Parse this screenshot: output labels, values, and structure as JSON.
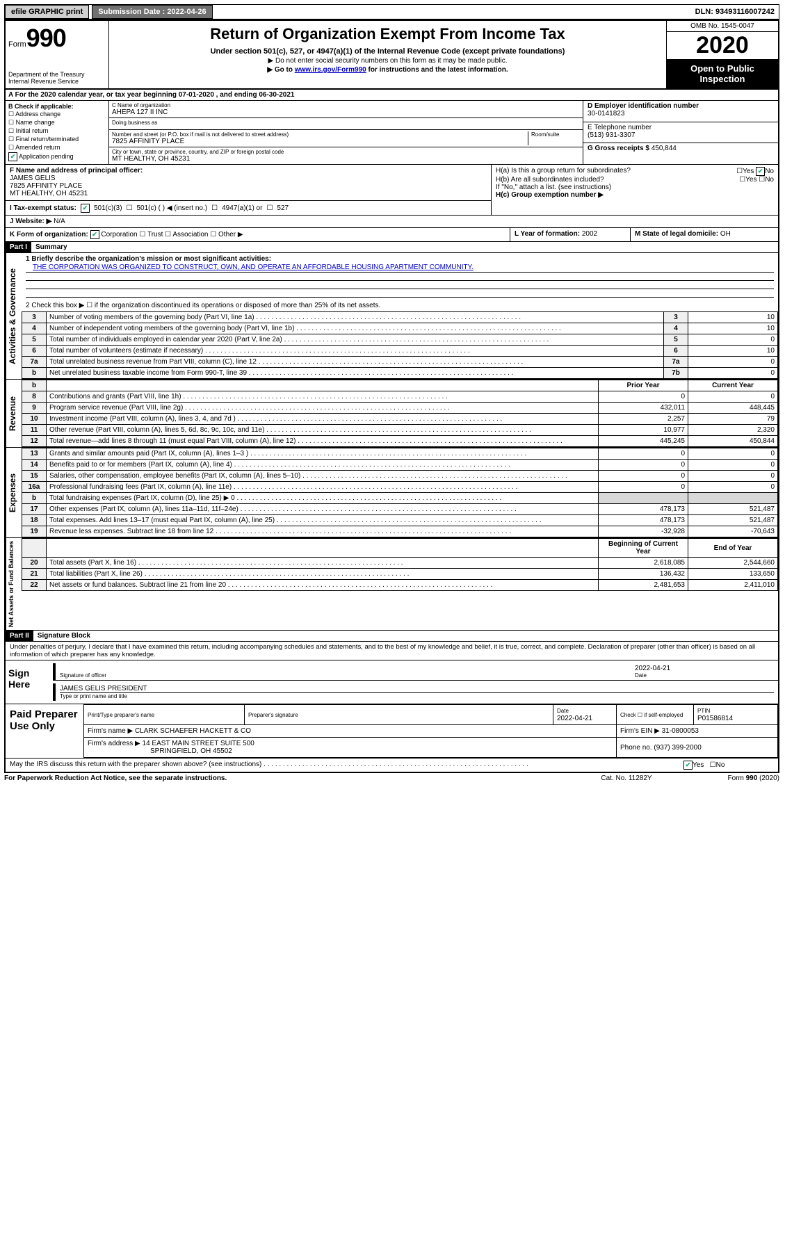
{
  "topbar": {
    "efile": "efile GRAPHIC print",
    "submission_label": "Submission Date : 2022-04-26",
    "dln": "DLN: 93493116007242"
  },
  "header": {
    "form_word": "Form",
    "form_num": "990",
    "dept": "Department of the Treasury\nInternal Revenue Service",
    "title": "Return of Organization Exempt From Income Tax",
    "subtitle": "Under section 501(c), 527, or 4947(a)(1) of the Internal Revenue Code (except private foundations)",
    "arrow1": "▶ Do not enter social security numbers on this form as it may be made public.",
    "arrow2_pre": "▶ Go to ",
    "arrow2_link": "www.irs.gov/Form990",
    "arrow2_post": " for instructions and the latest information.",
    "omb": "OMB No. 1545-0047",
    "year": "2020",
    "open": "Open to Public Inspection"
  },
  "A": {
    "text": "For the 2020 calendar year, or tax year beginning 07-01-2020    , and ending 06-30-2021"
  },
  "B": {
    "label": "B Check if applicable:",
    "opts": [
      "Address change",
      "Name change",
      "Initial return",
      "Final return/terminated",
      "Amended return",
      "Application pending"
    ],
    "pending_ck": "✔"
  },
  "C": {
    "name_lbl": "C Name of organization",
    "name": "AHEPA 127 II INC",
    "dba_lbl": "Doing business as",
    "addr_lbl": "Number and street (or P.O. box if mail is not delivered to street address)",
    "room_lbl": "Room/suite",
    "addr": "7825 AFFINITY PLACE",
    "city_lbl": "City or town, state or province, country, and ZIP or foreign postal code",
    "city": "MT HEALTHY, OH  45231"
  },
  "D": {
    "lbl": "D Employer identification number",
    "val": "30-0141823"
  },
  "E": {
    "lbl": "E Telephone number",
    "val": "(513) 931-3307"
  },
  "G": {
    "lbl": "G Gross receipts $",
    "val": "450,844"
  },
  "F": {
    "lbl": "F  Name and address of principal officer:",
    "name": "JAMES GELIS",
    "addr1": "7825 AFFINITY PLACE",
    "addr2": "MT HEALTHY, OH  45231"
  },
  "H": {
    "a": "H(a)  Is this a group return for subordinates?",
    "a_yes": "Yes",
    "a_no": "No",
    "a_no_ck": "✔",
    "b": "H(b)  Are all subordinates included?",
    "b_yes": "Yes",
    "b_no": "No",
    "b_note": "If \"No,\" attach a list. (see instructions)",
    "c": "H(c)  Group exemption number ▶"
  },
  "I": {
    "lbl": "I   Tax-exempt status:",
    "c1_ck": "✔",
    "c1": "501(c)(3)",
    "c2": "501(c) (   ) ◀ (insert no.)",
    "c3": "4947(a)(1) or",
    "c4": "527"
  },
  "J": {
    "lbl": "J   Website: ▶",
    "val": "N/A"
  },
  "K": {
    "lbl": "K Form of organization:",
    "ck": "✔",
    "opts": [
      "Corporation",
      "Trust",
      "Association",
      "Other ▶"
    ]
  },
  "L": {
    "lbl": "L Year of formation:",
    "val": "2002"
  },
  "M": {
    "lbl": "M State of legal domicile:",
    "val": "OH"
  },
  "part1": {
    "hdr": "Part I",
    "title": "Summary",
    "q1_lbl": "1  Briefly describe the organization's mission or most significant activities:",
    "q1_val": "THE CORPORATION WAS ORGANIZED TO CONSTRUCT, OWN, AND OPERATE AN AFFORDABLE HOUSING APARTMENT COMMUNITY.",
    "q2": "2   Check this box ▶ ☐  if the organization discontinued its operations or disposed of more than 25% of its net assets.",
    "rows_gov": [
      {
        "n": "3",
        "d": "Number of voting members of the governing body (Part VI, line 1a)",
        "k": "3",
        "v": "10"
      },
      {
        "n": "4",
        "d": "Number of independent voting members of the governing body (Part VI, line 1b)",
        "k": "4",
        "v": "10"
      },
      {
        "n": "5",
        "d": "Total number of individuals employed in calendar year 2020 (Part V, line 2a)",
        "k": "5",
        "v": "0"
      },
      {
        "n": "6",
        "d": "Total number of volunteers (estimate if necessary)",
        "k": "6",
        "v": "10"
      },
      {
        "n": "7a",
        "d": "Total unrelated business revenue from Part VIII, column (C), line 12",
        "k": "7a",
        "v": "0"
      },
      {
        "n": "b",
        "d": "Net unrelated business taxable income from Form 990-T, line 39",
        "k": "7b",
        "v": "0"
      }
    ],
    "col_prior": "Prior Year",
    "col_curr": "Current Year",
    "rows_rev": [
      {
        "n": "8",
        "d": "Contributions and grants (Part VIII, line 1h)",
        "p": "0",
        "c": "0"
      },
      {
        "n": "9",
        "d": "Program service revenue (Part VIII, line 2g)",
        "p": "432,011",
        "c": "448,445"
      },
      {
        "n": "10",
        "d": "Investment income (Part VIII, column (A), lines 3, 4, and 7d )",
        "p": "2,257",
        "c": "79"
      },
      {
        "n": "11",
        "d": "Other revenue (Part VIII, column (A), lines 5, 6d, 8c, 9c, 10c, and 11e)",
        "p": "10,977",
        "c": "2,320"
      },
      {
        "n": "12",
        "d": "Total revenue—add lines 8 through 11 (must equal Part VIII, column (A), line 12)",
        "p": "445,245",
        "c": "450,844"
      }
    ],
    "rows_exp": [
      {
        "n": "13",
        "d": "Grants and similar amounts paid (Part IX, column (A), lines 1–3 )   .    .    .",
        "p": "0",
        "c": "0"
      },
      {
        "n": "14",
        "d": "Benefits paid to or for members (Part IX, column (A), line 4)   .    .    .",
        "p": "0",
        "c": "0"
      },
      {
        "n": "15",
        "d": "Salaries, other compensation, employee benefits (Part IX, column (A), lines 5–10)",
        "p": "0",
        "c": "0"
      },
      {
        "n": "16a",
        "d": "Professional fundraising fees (Part IX, column (A), line 11e)   .    .    .    .    .",
        "p": "0",
        "c": "0"
      },
      {
        "n": "b",
        "d": "Total fundraising expenses (Part IX, column (D), line 25) ▶ 0",
        "p": "",
        "c": "",
        "shade": true
      },
      {
        "n": "17",
        "d": "Other expenses (Part IX, column (A), lines 11a–11d, 11f–24e)   .    .    .",
        "p": "478,173",
        "c": "521,487"
      },
      {
        "n": "18",
        "d": "Total expenses. Add lines 13–17 (must equal Part IX, column (A), line 25)",
        "p": "478,173",
        "c": "521,487"
      },
      {
        "n": "19",
        "d": "Revenue less expenses. Subtract line 18 from line 12   .    .    .    .    .    .    .    .",
        "p": "-32,928",
        "c": "-70,643"
      }
    ],
    "col_begin": "Beginning of Current Year",
    "col_end": "End of Year",
    "rows_net": [
      {
        "n": "20",
        "d": "Total assets (Part X, line 16)",
        "p": "2,618,085",
        "c": "2,544,660"
      },
      {
        "n": "21",
        "d": "Total liabilities (Part X, line 26)",
        "p": "136,432",
        "c": "133,650"
      },
      {
        "n": "22",
        "d": "Net assets or fund balances. Subtract line 21 from line 20",
        "p": "2,481,653",
        "c": "2,411,010"
      }
    ],
    "vtab_gov": "Activities & Governance",
    "vtab_rev": "Revenue",
    "vtab_exp": "Expenses",
    "vtab_net": "Net Assets or Fund Balances"
  },
  "part2": {
    "hdr": "Part II",
    "title": "Signature Block",
    "decl": "Under penalties of perjury, I declare that I have examined this return, including accompanying schedules and statements, and to the best of my knowledge and belief, it is true, correct, and complete. Declaration of preparer (other than officer) is based on all information of which preparer has any knowledge.",
    "sign_here": "Sign Here",
    "sig_officer": "Signature of officer",
    "sig_date": "2022-04-21",
    "sig_date_lbl": "Date",
    "officer_name": "JAMES GELIS  PRESIDENT",
    "officer_lbl": "Type or print name and title",
    "paid": "Paid Preparer Use Only",
    "prep_name_lbl": "Print/Type preparer's name",
    "prep_sig_lbl": "Preparer's signature",
    "prep_date_lbl": "Date",
    "prep_date": "2022-04-21",
    "prep_check_lbl": "Check ☐ if self-employed",
    "ptin_lbl": "PTIN",
    "ptin": "P01586814",
    "firm_name_lbl": "Firm's name    ▶",
    "firm_name": "CLARK SCHAEFER HACKETT & CO",
    "firm_ein_lbl": "Firm's EIN ▶",
    "firm_ein": "31-0800053",
    "firm_addr_lbl": "Firm's address ▶",
    "firm_addr": "14 EAST MAIN STREET SUITE 500",
    "firm_city": "SPRINGFIELD, OH  45502",
    "phone_lbl": "Phone no.",
    "phone": "(937) 399-2000",
    "discuss": "May the IRS discuss this return with the preparer shown above? (see instructions)",
    "discuss_yes_ck": "✔",
    "discuss_yes": "Yes",
    "discuss_no": "No"
  },
  "footer": {
    "pra": "For Paperwork Reduction Act Notice, see the separate instructions.",
    "cat": "Cat. No. 11282Y",
    "form": "Form 990 (2020)"
  }
}
